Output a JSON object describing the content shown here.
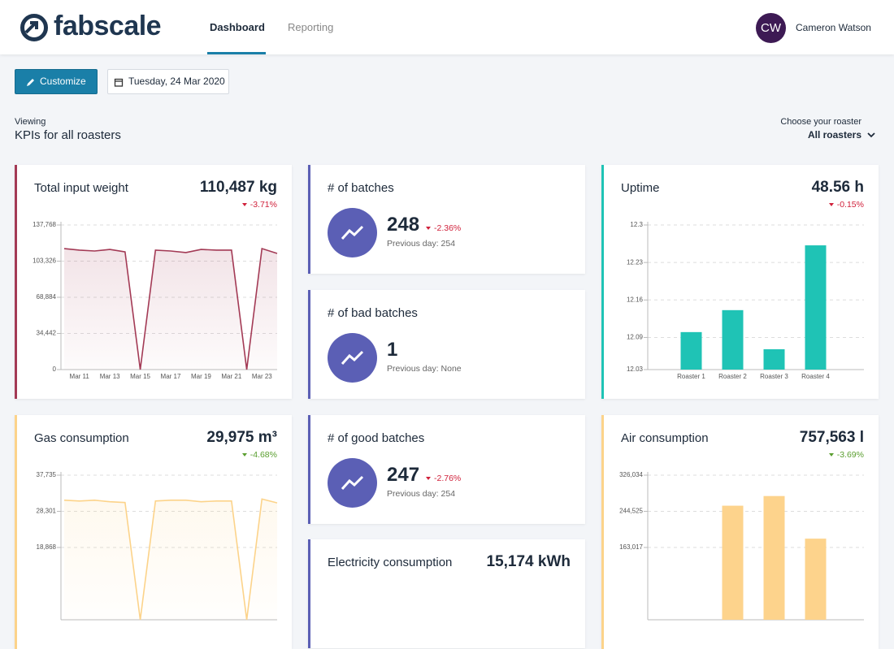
{
  "header": {
    "logo": "fabscale",
    "nav": [
      "Dashboard",
      "Reporting"
    ],
    "avatar": "CW",
    "user": "Cameron Watson"
  },
  "toolbar": {
    "customize": "Customize",
    "date": "Tuesday, 24 Mar 2020"
  },
  "viewing": {
    "label": "Viewing",
    "title": "KPIs for all roasters",
    "roaster_label": "Choose your roaster",
    "roaster": "All roasters"
  },
  "cards": [
    {
      "title": "Total input weight",
      "value": "110,487 kg",
      "change": "-3.71%",
      "change_color": "#d0213b",
      "accent": "#a33a55",
      "chart": {
        "type": "line",
        "color": "#a33a55",
        "categories": [
          null,
          "Mar 11",
          null,
          "Mar 13",
          null,
          "Mar 15",
          null,
          "Mar 17",
          null,
          "Mar 19",
          null,
          "Mar 21",
          null,
          "Mar 23",
          null
        ],
        "values": [
          115300,
          113800,
          113000,
          114500,
          112200,
          0,
          113800,
          113000,
          111500,
          114500,
          113800,
          113800,
          0,
          115300,
          110700
        ],
        "ylim": [
          0,
          137768
        ],
        "yticks": [
          0,
          {
            "value": 34442,
            "label": "34,442"
          },
          {
            "value": 68884,
            "label": "68,884"
          },
          {
            "value": 103326,
            "label": "103,326"
          },
          {
            "value": 137768,
            "label": "137,768"
          }
        ]
      }
    },
    {
      "title": "# of batches",
      "value": "248",
      "change": "-2.36%",
      "change_color": "#d0213b",
      "previous": "Previous day: 254",
      "accent": "#5b5fb5"
    },
    {
      "title": "# of bad batches",
      "value": "1",
      "previous": "Previous day: None",
      "accent": "#5b5fb5"
    },
    {
      "title": "# of good batches",
      "value": "247",
      "change": "-2.76%",
      "change_color": "#d0213b",
      "previous": "Previous day: 254",
      "accent": "#5b5fb5"
    },
    {
      "title": "Electricity consumption",
      "value": "15,174 kWh",
      "accent": "#5b5fb5"
    },
    {
      "title": "Uptime",
      "value": "48.56 h",
      "change": "-0.15%",
      "change_color": "#d0213b",
      "accent": "#1fc3b5",
      "chart": {
        "type": "bar",
        "color": "#1fc3b5",
        "categories": [
          "Roaster 1",
          "Roaster 2",
          "Roaster 3",
          "Roaster 4"
        ],
        "values": [
          12.1,
          12.141,
          12.068,
          12.262
        ],
        "ylim": [
          12.03,
          12.3
        ],
        "yticks": [
          12.03,
          12.09,
          12.16,
          12.23,
          12.3
        ]
      }
    },
    {
      "title": "Gas consumption",
      "value": "29,975 m³",
      "change": "-4.68%",
      "change_color": "#5a9e2f",
      "accent": "#fcd38a",
      "chart": {
        "type": "line",
        "color": "#fcd38a",
        "values": [
          31200,
          31000,
          31200,
          30800,
          30600,
          0,
          31000,
          31200,
          31200,
          30800,
          31000,
          31000,
          0,
          31500,
          30500
        ],
        "ylim": [
          0,
          37735
        ],
        "yticks": [
          {
            "value": 18868,
            "label": "18,868"
          },
          {
            "value": 28301,
            "label": "28,301"
          },
          {
            "value": 37735,
            "label": "37,735"
          }
        ]
      }
    },
    {
      "title": "Air consumption",
      "value": "757,563 l",
      "change": "-3.69%",
      "change_color": "#5a9e2f",
      "accent": "#fcd38a",
      "chart": {
        "type": "bar",
        "color": "#fdd38c",
        "values": [
          null,
          257200,
          279000,
          182900
        ],
        "ylim": [
          0,
          326034
        ],
        "yticks": [
          {
            "value": 163017,
            "label": "163,017"
          },
          {
            "value": 244525,
            "label": "244,525"
          },
          {
            "value": 326034,
            "label": "326,034"
          }
        ]
      }
    }
  ]
}
